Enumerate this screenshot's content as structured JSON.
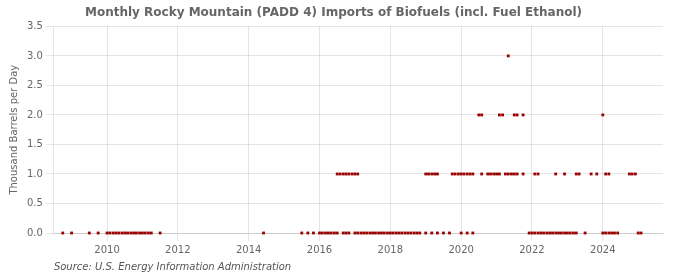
{
  "chart_data": {
    "type": "scatter",
    "title": "Monthly Rocky Mountain (PADD 4) Imports of Biofuels (incl. Fuel Ethanol)",
    "y_label": "Thousand Barrels per Day",
    "annotations": [
      "Source: U.S. Energy Information Administration"
    ],
    "color": "#990000",
    "marker": "square",
    "grid": true,
    "xlim": [
      2008.5,
      2025.7
    ],
    "xticks": [
      2010,
      2012,
      2014,
      2016,
      2018,
      2020,
      2022,
      2024
    ],
    "ylim": [
      0.0,
      3.5
    ],
    "yticks": [
      {
        "value": 0.0,
        "label": "0.0"
      },
      0.5,
      {
        "value": 1.0,
        "label": "1.0"
      },
      1.5,
      {
        "value": 2.0,
        "label": "2.0"
      },
      2.5,
      {
        "value": 3.0,
        "label": "3.0"
      },
      3.5
    ],
    "x": [
      2008.75,
      2009.0,
      2009.5,
      2009.75,
      2010.0,
      2010.08,
      2010.17,
      2010.25,
      2010.33,
      2010.42,
      2010.5,
      2010.58,
      2010.67,
      2010.75,
      2010.83,
      2010.92,
      2011.0,
      2011.08,
      2011.17,
      2011.25,
      2011.5,
      2014.42,
      2015.5,
      2015.67,
      2015.83,
      2016.0,
      2016.08,
      2016.17,
      2016.25,
      2016.33,
      2016.42,
      2016.5,
      2016.67,
      2016.75,
      2016.83,
      2017.0,
      2017.08,
      2017.17,
      2017.25,
      2017.33,
      2017.42,
      2017.5,
      2017.58,
      2017.67,
      2017.75,
      2017.83,
      2017.92,
      2018.0,
      2018.08,
      2018.17,
      2018.25,
      2018.33,
      2018.42,
      2018.5,
      2018.58,
      2018.67,
      2018.75,
      2018.83,
      2019.0,
      2019.17,
      2019.33,
      2019.5,
      2019.67,
      2020.0,
      2020.17,
      2020.33,
      2021.92,
      2022.0,
      2022.08,
      2022.17,
      2022.25,
      2022.33,
      2022.42,
      2022.5,
      2022.58,
      2022.67,
      2022.75,
      2022.83,
      2022.92,
      2023.0,
      2023.08,
      2023.17,
      2023.25,
      2023.5,
      2024.0,
      2024.08,
      2024.17,
      2024.25,
      2024.33,
      2024.42,
      2025.0,
      2025.08,
      2016.5,
      2016.58,
      2016.67,
      2016.75,
      2016.83,
      2016.92,
      2017.0,
      2017.08,
      2019.0,
      2019.08,
      2019.17,
      2019.25,
      2019.33,
      2019.75,
      2019.83,
      2019.92,
      2020.0,
      2020.08,
      2020.17,
      2020.25,
      2020.33,
      2020.58,
      2020.75,
      2020.83,
      2020.92,
      2021.0,
      2021.08,
      2021.25,
      2021.33,
      2021.42,
      2021.5,
      2021.58,
      2021.75,
      2022.08,
      2022.17,
      2022.67,
      2022.92,
      2023.25,
      2023.33,
      2023.67,
      2023.83,
      2024.08,
      2024.17,
      2024.75,
      2024.83,
      2024.92,
      2020.5,
      2020.58,
      2021.08,
      2021.17,
      2021.5,
      2021.58,
      2021.75,
      2024.0,
      2021.33
    ],
    "values": [
      0.0,
      0.0,
      0.0,
      0.0,
      0.0,
      0.0,
      0.0,
      0.0,
      0.0,
      0.0,
      0.0,
      0.0,
      0.0,
      0.0,
      0.0,
      0.0,
      0.0,
      0.0,
      0.0,
      0.0,
      0.0,
      0.0,
      0.0,
      0.0,
      0.0,
      0.0,
      0.0,
      0.0,
      0.0,
      0.0,
      0.0,
      0.0,
      0.0,
      0.0,
      0.0,
      0.0,
      0.0,
      0.0,
      0.0,
      0.0,
      0.0,
      0.0,
      0.0,
      0.0,
      0.0,
      0.0,
      0.0,
      0.0,
      0.0,
      0.0,
      0.0,
      0.0,
      0.0,
      0.0,
      0.0,
      0.0,
      0.0,
      0.0,
      0.0,
      0.0,
      0.0,
      0.0,
      0.0,
      0.0,
      0.0,
      0.0,
      0.0,
      0.0,
      0.0,
      0.0,
      0.0,
      0.0,
      0.0,
      0.0,
      0.0,
      0.0,
      0.0,
      0.0,
      0.0,
      0.0,
      0.0,
      0.0,
      0.0,
      0.0,
      0.0,
      0.0,
      0.0,
      0.0,
      0.0,
      0.0,
      0.0,
      0.0,
      1.0,
      1.0,
      1.0,
      1.0,
      1.0,
      1.0,
      1.0,
      1.0,
      1.0,
      1.0,
      1.0,
      1.0,
      1.0,
      1.0,
      1.0,
      1.0,
      1.0,
      1.0,
      1.0,
      1.0,
      1.0,
      1.0,
      1.0,
      1.0,
      1.0,
      1.0,
      1.0,
      1.0,
      1.0,
      1.0,
      1.0,
      1.0,
      1.0,
      1.0,
      1.0,
      1.0,
      1.0,
      1.0,
      1.0,
      1.0,
      1.0,
      1.0,
      1.0,
      1.0,
      1.0,
      1.0,
      2.0,
      2.0,
      2.0,
      2.0,
      2.0,
      2.0,
      2.0,
      2.0,
      3.0
    ]
  }
}
